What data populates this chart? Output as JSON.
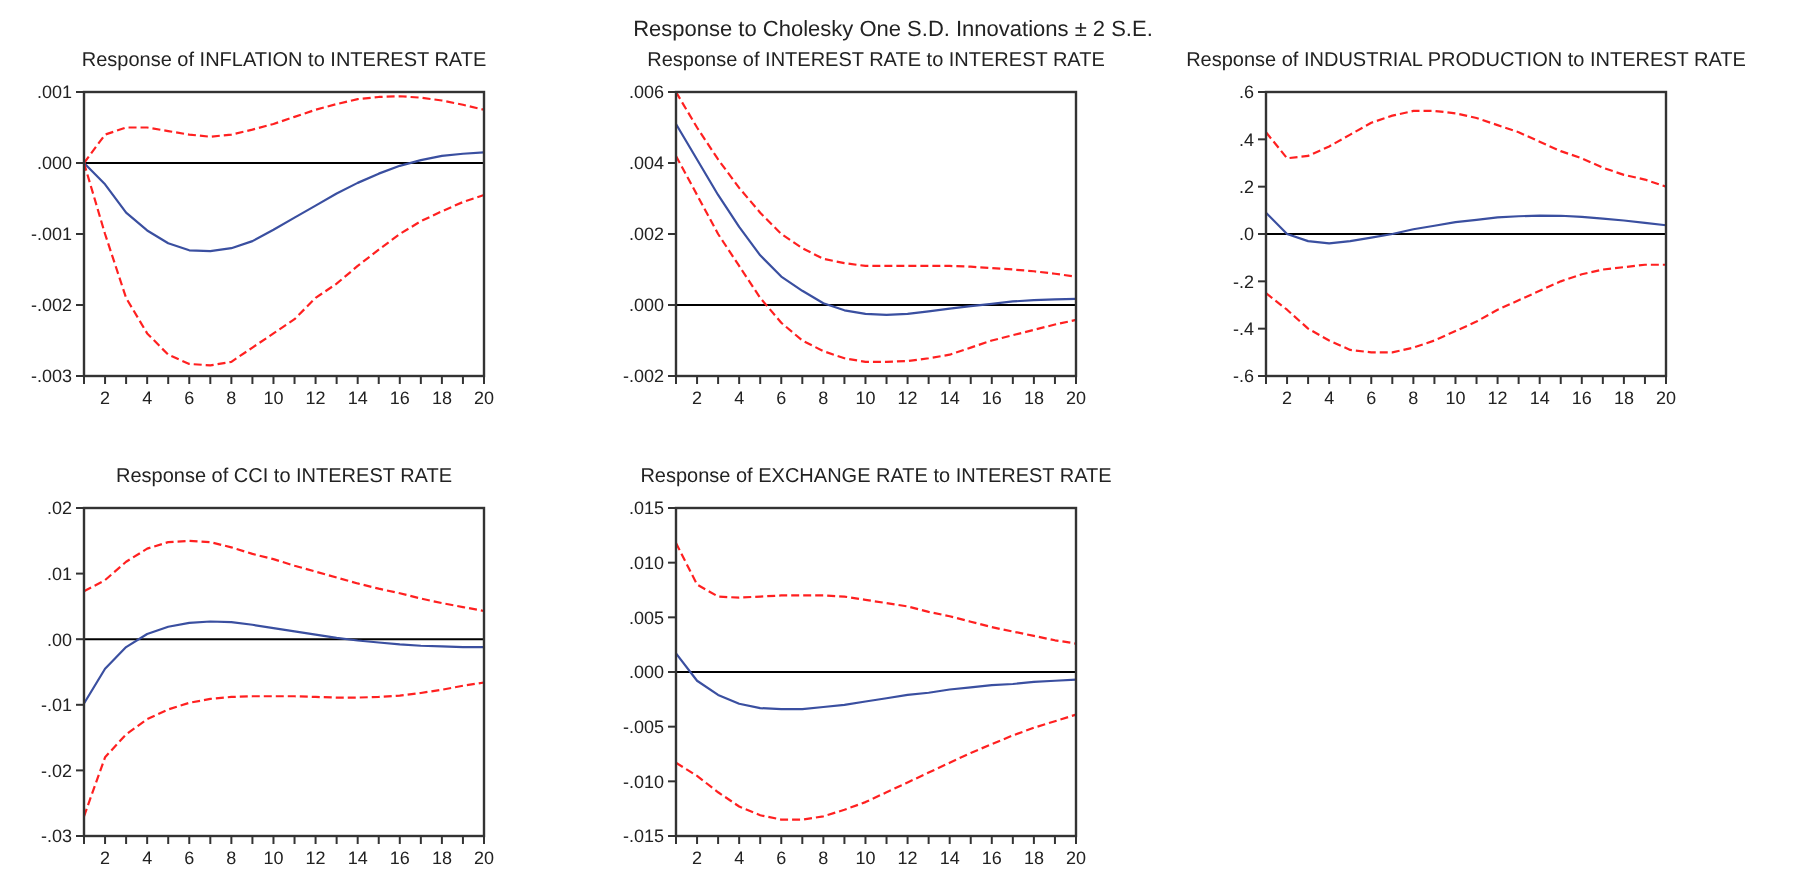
{
  "chart_data": [
    {
      "type": "line",
      "title": "Response of INFLATION to INTEREST RATE",
      "annotations": [
        "Response to Cholesky One S.D. Innovations ± 2 S.E."
      ],
      "x": [
        1,
        2,
        3,
        4,
        5,
        6,
        7,
        8,
        9,
        10,
        11,
        12,
        13,
        14,
        15,
        16,
        17,
        18,
        19,
        20
      ],
      "xlim": [
        1,
        20
      ],
      "xticks": [
        {
          "value": 1,
          "label": null
        },
        2,
        {
          "value": 3,
          "label": null
        },
        4,
        {
          "value": 5,
          "label": null
        },
        6,
        {
          "value": 7,
          "label": null
        },
        8,
        {
          "value": 9,
          "label": null
        },
        10,
        {
          "value": 11,
          "label": null
        },
        12,
        {
          "value": 13,
          "label": null
        },
        14,
        {
          "value": 15,
          "label": null
        },
        16,
        {
          "value": 17,
          "label": null
        },
        18,
        {
          "value": 19,
          "label": null
        },
        20
      ],
      "ylim": [
        -0.003,
        0.001
      ],
      "yticks": [
        {
          "value": -0.003,
          "label": "-.003"
        },
        {
          "value": -0.002,
          "label": "-.002"
        },
        {
          "value": -0.001,
          "label": "-.001"
        },
        {
          "value": 0,
          "label": ".000"
        },
        {
          "value": 0.001,
          "label": ".001"
        }
      ],
      "ref_lines": [
        {
          "axis": "y",
          "value": 0,
          "color": "#000000"
        }
      ],
      "series": [
        {
          "color": "#3a4fa0",
          "line_style": "solid",
          "values": [
            0,
            -0.0003,
            -0.0007,
            -0.00095,
            -0.00113,
            -0.00123,
            -0.00124,
            -0.0012,
            -0.0011,
            -0.00094,
            -0.00077,
            -0.0006,
            -0.00043,
            -0.00028,
            -0.00015,
            -4e-05,
            4e-05,
            0.0001,
            0.00013,
            0.00015
          ]
        },
        {
          "color": "#ff2020",
          "line_style": "dashed",
          "values": [
            0,
            0.0004,
            0.0005,
            0.0005,
            0.00045,
            0.0004,
            0.00037,
            0.0004,
            0.00047,
            0.00055,
            0.00065,
            0.00075,
            0.00083,
            0.0009,
            0.00093,
            0.00094,
            0.00092,
            0.00088,
            0.00082,
            0.00075
          ]
        },
        {
          "color": "#ff2020",
          "line_style": "dashed",
          "values": [
            0,
            -0.001,
            -0.0019,
            -0.0024,
            -0.0027,
            -0.00283,
            -0.00285,
            -0.0028,
            -0.0026,
            -0.0024,
            -0.0022,
            -0.0019,
            -0.0017,
            -0.00145,
            -0.00122,
            -0.001,
            -0.00082,
            -0.00068,
            -0.00055,
            -0.00045
          ]
        }
      ]
    },
    {
      "type": "line",
      "title": "Response of INTEREST RATE to INTEREST RATE",
      "x": [
        1,
        2,
        3,
        4,
        5,
        6,
        7,
        8,
        9,
        10,
        11,
        12,
        13,
        14,
        15,
        16,
        17,
        18,
        19,
        20
      ],
      "xlim": [
        1,
        20
      ],
      "xticks": [
        {
          "value": 1,
          "label": null
        },
        2,
        {
          "value": 3,
          "label": null
        },
        4,
        {
          "value": 5,
          "label": null
        },
        6,
        {
          "value": 7,
          "label": null
        },
        8,
        {
          "value": 9,
          "label": null
        },
        10,
        {
          "value": 11,
          "label": null
        },
        12,
        {
          "value": 13,
          "label": null
        },
        14,
        {
          "value": 15,
          "label": null
        },
        16,
        {
          "value": 17,
          "label": null
        },
        18,
        {
          "value": 19,
          "label": null
        },
        20
      ],
      "ylim": [
        -0.002,
        0.006
      ],
      "yticks": [
        {
          "value": -0.002,
          "label": "-.002"
        },
        {
          "value": 0,
          "label": ".000"
        },
        {
          "value": 0.002,
          "label": ".002"
        },
        {
          "value": 0.004,
          "label": ".004"
        },
        {
          "value": 0.006,
          "label": ".006"
        }
      ],
      "ref_lines": [
        {
          "axis": "y",
          "value": 0,
          "color": "#000000"
        }
      ],
      "series": [
        {
          "color": "#3a4fa0",
          "line_style": "solid",
          "values": [
            0.0051,
            0.0041,
            0.0031,
            0.0022,
            0.0014,
            0.0008,
            0.0004,
            5e-05,
            -0.00015,
            -0.00025,
            -0.00028,
            -0.00025,
            -0.00018,
            -0.0001,
            -3e-05,
            3e-05,
            0.0001,
            0.00014,
            0.00016,
            0.00017
          ]
        },
        {
          "color": "#ff2020",
          "line_style": "dashed",
          "values": [
            0.006,
            0.005,
            0.0041,
            0.0033,
            0.0026,
            0.002,
            0.0016,
            0.0013,
            0.00118,
            0.0011,
            0.0011,
            0.0011,
            0.0011,
            0.0011,
            0.00108,
            0.00104,
            0.001,
            0.00095,
            0.00088,
            0.0008
          ]
        },
        {
          "color": "#ff2020",
          "line_style": "dashed",
          "values": [
            0.0042,
            0.0031,
            0.002,
            0.0011,
            0.0002,
            -0.0005,
            -0.001,
            -0.0013,
            -0.0015,
            -0.0016,
            -0.0016,
            -0.00158,
            -0.0015,
            -0.0014,
            -0.0012,
            -0.001,
            -0.00085,
            -0.0007,
            -0.00055,
            -0.00042
          ]
        }
      ]
    },
    {
      "type": "line",
      "title": "Response of INDUSTRIAL PRODUCTION to INTEREST RATE",
      "x": [
        1,
        2,
        3,
        4,
        5,
        6,
        7,
        8,
        9,
        10,
        11,
        12,
        13,
        14,
        15,
        16,
        17,
        18,
        19,
        20
      ],
      "xlim": [
        1,
        20
      ],
      "xticks": [
        {
          "value": 1,
          "label": null
        },
        2,
        {
          "value": 3,
          "label": null
        },
        4,
        {
          "value": 5,
          "label": null
        },
        6,
        {
          "value": 7,
          "label": null
        },
        8,
        {
          "value": 9,
          "label": null
        },
        10,
        {
          "value": 11,
          "label": null
        },
        12,
        {
          "value": 13,
          "label": null
        },
        14,
        {
          "value": 15,
          "label": null
        },
        16,
        {
          "value": 17,
          "label": null
        },
        18,
        {
          "value": 19,
          "label": null
        },
        20
      ],
      "ylim": [
        -0.6,
        0.6
      ],
      "yticks": [
        {
          "value": -0.6,
          "label": "-.6"
        },
        {
          "value": -0.4,
          "label": "-.4"
        },
        {
          "value": -0.2,
          "label": "-.2"
        },
        {
          "value": 0,
          "label": ".0"
        },
        {
          "value": 0.2,
          "label": ".2"
        },
        {
          "value": 0.4,
          "label": ".4"
        },
        {
          "value": 0.6,
          "label": ".6"
        }
      ],
      "ref_lines": [
        {
          "axis": "y",
          "value": 0,
          "color": "#000000"
        }
      ],
      "series": [
        {
          "color": "#3a4fa0",
          "line_style": "solid",
          "values": [
            0.09,
            0,
            -0.03,
            -0.04,
            -0.03,
            -0.015,
            0,
            0.02,
            0.035,
            0.05,
            0.06,
            0.07,
            0.075,
            0.078,
            0.077,
            0.072,
            0.065,
            0.057,
            0.047,
            0.037
          ]
        },
        {
          "color": "#ff2020",
          "line_style": "dashed",
          "values": [
            0.43,
            0.32,
            0.33,
            0.37,
            0.42,
            0.47,
            0.5,
            0.52,
            0.52,
            0.51,
            0.49,
            0.46,
            0.43,
            0.39,
            0.35,
            0.32,
            0.28,
            0.25,
            0.23,
            0.2
          ]
        },
        {
          "color": "#ff2020",
          "line_style": "dashed",
          "values": [
            -0.25,
            -0.32,
            -0.4,
            -0.45,
            -0.49,
            -0.5,
            -0.5,
            -0.48,
            -0.45,
            -0.41,
            -0.37,
            -0.32,
            -0.28,
            -0.24,
            -0.2,
            -0.17,
            -0.15,
            -0.14,
            -0.13,
            -0.13
          ]
        }
      ]
    },
    {
      "type": "line",
      "title": "Response of CCI to INTEREST RATE",
      "x": [
        1,
        2,
        3,
        4,
        5,
        6,
        7,
        8,
        9,
        10,
        11,
        12,
        13,
        14,
        15,
        16,
        17,
        18,
        19,
        20
      ],
      "xlim": [
        1,
        20
      ],
      "xticks": [
        {
          "value": 1,
          "label": null
        },
        2,
        {
          "value": 3,
          "label": null
        },
        4,
        {
          "value": 5,
          "label": null
        },
        6,
        {
          "value": 7,
          "label": null
        },
        8,
        {
          "value": 9,
          "label": null
        },
        10,
        {
          "value": 11,
          "label": null
        },
        12,
        {
          "value": 13,
          "label": null
        },
        14,
        {
          "value": 15,
          "label": null
        },
        16,
        {
          "value": 17,
          "label": null
        },
        18,
        {
          "value": 19,
          "label": null
        },
        20
      ],
      "ylim": [
        -0.03,
        0.02
      ],
      "yticks": [
        {
          "value": -0.03,
          "label": "-.03"
        },
        {
          "value": -0.02,
          "label": "-.02"
        },
        {
          "value": -0.01,
          "label": "-.01"
        },
        {
          "value": 0,
          "label": ".00"
        },
        {
          "value": 0.01,
          "label": ".01"
        },
        {
          "value": 0.02,
          "label": ".02"
        }
      ],
      "ref_lines": [
        {
          "axis": "y",
          "value": 0,
          "color": "#000000"
        }
      ],
      "series": [
        {
          "color": "#3a4fa0",
          "line_style": "solid",
          "values": [
            -0.0098,
            -0.0045,
            -0.0012,
            0.0008,
            0.0019,
            0.0025,
            0.0027,
            0.0026,
            0.0022,
            0.0017,
            0.0012,
            0.0007,
            0.0002,
            -0.0002,
            -0.0005,
            -0.0008,
            -0.001,
            -0.0011,
            -0.0012,
            -0.0012
          ]
        },
        {
          "color": "#ff2020",
          "line_style": "dashed",
          "values": [
            0.0073,
            0.009,
            0.0118,
            0.0138,
            0.0148,
            0.015,
            0.0148,
            0.014,
            0.013,
            0.0122,
            0.0112,
            0.0103,
            0.0094,
            0.0085,
            0.0077,
            0.007,
            0.0062,
            0.0055,
            0.0049,
            0.0043
          ]
        },
        {
          "color": "#ff2020",
          "line_style": "dashed",
          "values": [
            -0.027,
            -0.018,
            -0.0145,
            -0.0122,
            -0.0107,
            -0.0097,
            -0.0091,
            -0.0088,
            -0.0087,
            -0.0087,
            -0.0087,
            -0.0088,
            -0.0089,
            -0.0089,
            -0.0088,
            -0.0086,
            -0.0082,
            -0.0077,
            -0.0071,
            -0.0066
          ]
        }
      ]
    },
    {
      "type": "line",
      "title": "Response of EXCHANGE RATE to INTEREST RATE",
      "x": [
        1,
        2,
        3,
        4,
        5,
        6,
        7,
        8,
        9,
        10,
        11,
        12,
        13,
        14,
        15,
        16,
        17,
        18,
        19,
        20
      ],
      "xlim": [
        1,
        20
      ],
      "xticks": [
        {
          "value": 1,
          "label": null
        },
        2,
        {
          "value": 3,
          "label": null
        },
        4,
        {
          "value": 5,
          "label": null
        },
        6,
        {
          "value": 7,
          "label": null
        },
        8,
        {
          "value": 9,
          "label": null
        },
        10,
        {
          "value": 11,
          "label": null
        },
        12,
        {
          "value": 13,
          "label": null
        },
        14,
        {
          "value": 15,
          "label": null
        },
        16,
        {
          "value": 17,
          "label": null
        },
        18,
        {
          "value": 19,
          "label": null
        },
        20
      ],
      "ylim": [
        -0.015,
        0.015
      ],
      "yticks": [
        {
          "value": -0.015,
          "label": "-.015"
        },
        {
          "value": -0.01,
          "label": "-.010"
        },
        {
          "value": -0.005,
          "label": "-.005"
        },
        {
          "value": 0,
          "label": ".000"
        },
        {
          "value": 0.005,
          "label": ".005"
        },
        {
          "value": 0.01,
          "label": ".010"
        },
        {
          "value": 0.015,
          "label": ".015"
        }
      ],
      "ref_lines": [
        {
          "axis": "y",
          "value": 0,
          "color": "#000000"
        }
      ],
      "series": [
        {
          "color": "#3a4fa0",
          "line_style": "solid",
          "values": [
            0.0017,
            -0.0008,
            -0.0021,
            -0.0029,
            -0.0033,
            -0.0034,
            -0.0034,
            -0.0032,
            -0.003,
            -0.0027,
            -0.0024,
            -0.0021,
            -0.0019,
            -0.0016,
            -0.0014,
            -0.0012,
            -0.0011,
            -0.0009,
            -0.0008,
            -0.0007
          ]
        },
        {
          "color": "#ff2020",
          "line_style": "dashed",
          "values": [
            0.0118,
            0.008,
            0.0069,
            0.0068,
            0.0069,
            0.007,
            0.007,
            0.007,
            0.0069,
            0.0066,
            0.0063,
            0.006,
            0.0055,
            0.0051,
            0.0046,
            0.0041,
            0.0037,
            0.0033,
            0.0029,
            0.0026
          ]
        },
        {
          "color": "#ff2020",
          "line_style": "dashed",
          "values": [
            -0.0083,
            -0.0095,
            -0.011,
            -0.0123,
            -0.0131,
            -0.0135,
            -0.0135,
            -0.0132,
            -0.0126,
            -0.0119,
            -0.011,
            -0.0101,
            -0.0092,
            -0.0083,
            -0.0074,
            -0.0066,
            -0.0058,
            -0.0051,
            -0.0045,
            -0.0039
          ]
        }
      ]
    }
  ]
}
